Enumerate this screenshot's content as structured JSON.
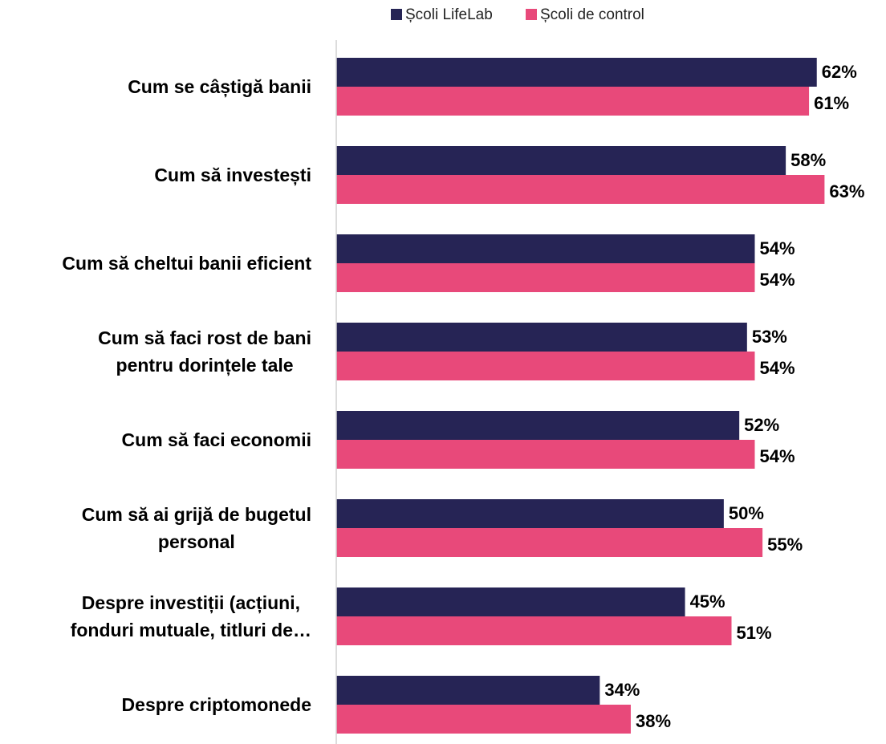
{
  "chart_data": {
    "type": "barh",
    "categories": [
      "Cum se câștigă banii",
      "Cum să investești",
      "Cum să cheltui banii eficient",
      "Cum să faci rost de bani\npentru dorințele tale",
      "Cum să faci economii",
      "Cum să ai grijă de bugetul\npersonal",
      "Despre investiții (acțiuni,\nfonduri mutuale, titluri de…",
      "Despre criptomonede"
    ],
    "series": [
      {
        "name": "Școli LifeLab",
        "color": "#262455",
        "values": [
          62,
          58,
          54,
          53,
          52,
          50,
          45,
          34
        ],
        "value_labels": [
          "62%",
          "58%",
          "54%",
          "53%",
          "52%",
          "50%",
          "45%",
          "34%"
        ]
      },
      {
        "name": "Școli de control",
        "color": "#e8497a",
        "values": [
          61,
          63,
          54,
          54,
          54,
          55,
          51,
          38
        ],
        "value_labels": [
          "61%",
          "63%",
          "54%",
          "54%",
          "54%",
          "55%",
          "51%",
          "38%"
        ]
      }
    ],
    "xlim": [
      0,
      70
    ],
    "legend": "top"
  }
}
